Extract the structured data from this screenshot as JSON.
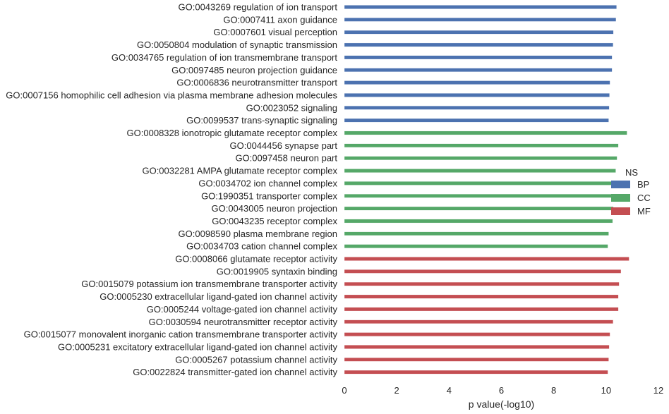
{
  "chart_data": {
    "type": "bar",
    "orientation": "horizontal",
    "xlabel": "p value(-log10)",
    "xlim": [
      0,
      12
    ],
    "xticks": [
      0,
      2,
      4,
      6,
      8,
      10,
      12
    ],
    "grid": false,
    "legend": {
      "title": "NS",
      "placement": "right",
      "entries": [
        {
          "name": "BP",
          "color": "#4c72b0"
        },
        {
          "name": "CC",
          "color": "#55a868"
        },
        {
          "name": "MF",
          "color": "#c44e52"
        }
      ]
    },
    "bars": [
      {
        "label": "GO:0043269 regulation of ion transport",
        "group": "BP",
        "value": 10.4
      },
      {
        "label": "GO:0007411 axon guidance",
        "group": "BP",
        "value": 10.38
      },
      {
        "label": "GO:0007601 visual perception",
        "group": "BP",
        "value": 10.28
      },
      {
        "label": "GO:0050804 modulation of synaptic transmission",
        "group": "BP",
        "value": 10.27
      },
      {
        "label": "GO:0034765 regulation of ion transmembrane transport",
        "group": "BP",
        "value": 10.23
      },
      {
        "label": "GO:0097485 neuron projection guidance",
        "group": "BP",
        "value": 10.23
      },
      {
        "label": "GO:0006836 neurotransmitter transport",
        "group": "BP",
        "value": 10.15
      },
      {
        "label": "GO:0007156 homophilic cell adhesion via plasma membrane adhesion molecules",
        "group": "BP",
        "value": 10.13
      },
      {
        "label": "GO:0023052 signaling",
        "group": "BP",
        "value": 10.12
      },
      {
        "label": "GO:0099537 trans-synaptic signaling",
        "group": "BP",
        "value": 10.1
      },
      {
        "label": "GO:0008328 ionotropic glutamate receptor complex",
        "group": "CC",
        "value": 10.8
      },
      {
        "label": "GO:0044456 synapse part",
        "group": "CC",
        "value": 10.47
      },
      {
        "label": "GO:0097458 neuron part",
        "group": "CC",
        "value": 10.42
      },
      {
        "label": "GO:0032281 AMPA glutamate receptor complex",
        "group": "CC",
        "value": 10.37
      },
      {
        "label": "GO:0034702 ion channel complex",
        "group": "CC",
        "value": 10.35
      },
      {
        "label": "GO:1990351 transporter complex",
        "group": "CC",
        "value": 10.3
      },
      {
        "label": "GO:0043005 neuron projection",
        "group": "CC",
        "value": 10.28
      },
      {
        "label": "GO:0043235 receptor complex",
        "group": "CC",
        "value": 10.25
      },
      {
        "label": "GO:0098590 plasma membrane region",
        "group": "CC",
        "value": 10.1
      },
      {
        "label": "GO:0034703 cation channel complex",
        "group": "CC",
        "value": 10.07
      },
      {
        "label": "GO:0008066 glutamate receptor activity",
        "group": "MF",
        "value": 10.88
      },
      {
        "label": "GO:0019905 syntaxin binding",
        "group": "MF",
        "value": 10.57
      },
      {
        "label": "GO:0015079 potassium ion transmembrane transporter activity",
        "group": "MF",
        "value": 10.5
      },
      {
        "label": "GO:0005230 extracellular ligand-gated ion channel activity",
        "group": "MF",
        "value": 10.47
      },
      {
        "label": "GO:0005244 voltage-gated ion channel activity",
        "group": "MF",
        "value": 10.47
      },
      {
        "label": "GO:0030594 neurotransmitter receptor activity",
        "group": "MF",
        "value": 10.27
      },
      {
        "label": "GO:0015077 monovalent inorganic cation transmembrane transporter activity",
        "group": "MF",
        "value": 10.15
      },
      {
        "label": "GO:0005231 excitatory extracellular ligand-gated ion channel activity",
        "group": "MF",
        "value": 10.12
      },
      {
        "label": "GO:0005267 potassium channel activity",
        "group": "MF",
        "value": 10.1
      },
      {
        "label": "GO:0022824 transmitter-gated ion channel activity",
        "group": "MF",
        "value": 10.07
      }
    ]
  }
}
